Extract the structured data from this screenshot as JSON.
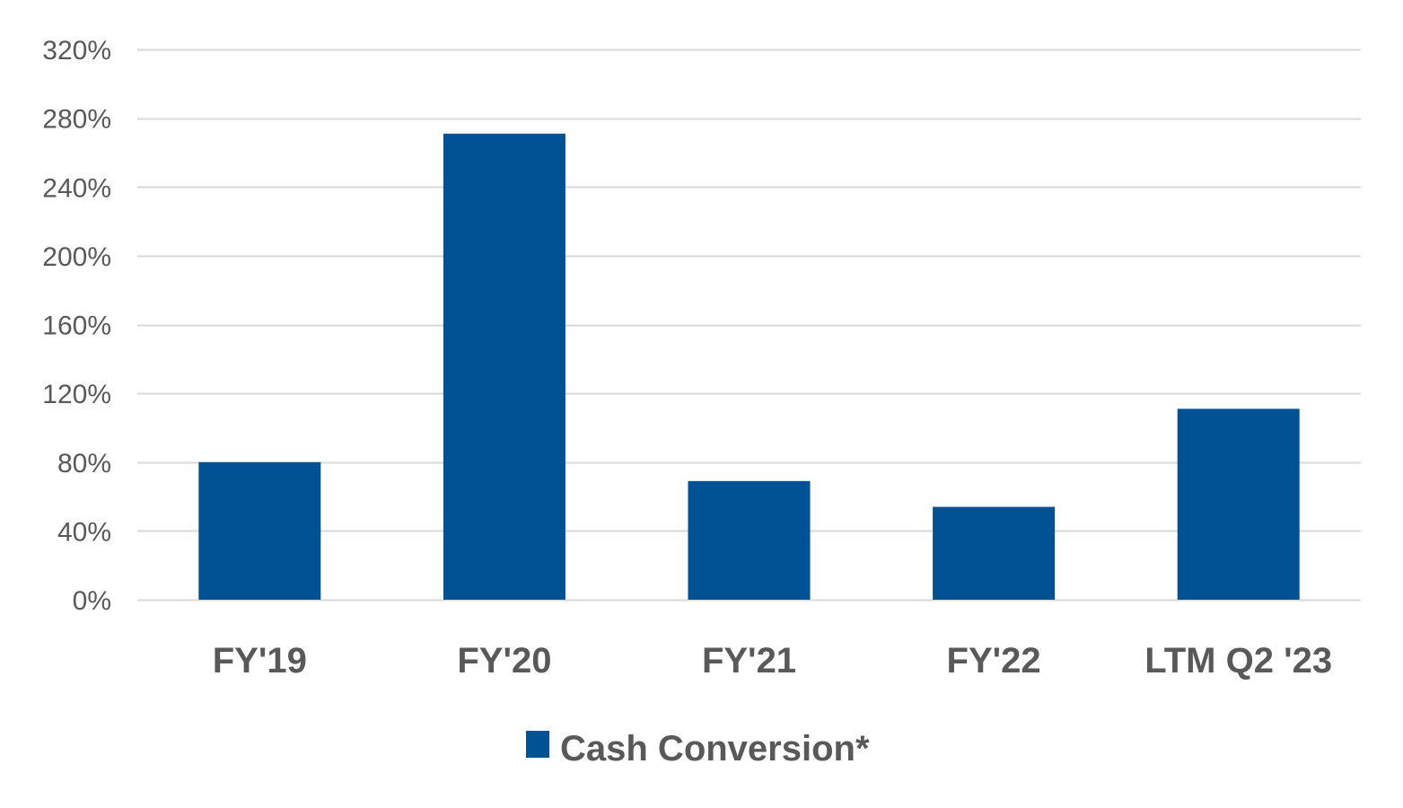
{
  "chart_data": {
    "type": "bar",
    "categories": [
      "FY'19",
      "FY'20",
      "FY'21",
      "FY'22",
      "LTM Q2 '23"
    ],
    "series": [
      {
        "name": "Cash Conversion*",
        "values": [
          80,
          271,
          69,
          54,
          111
        ],
        "color": "#005294"
      }
    ],
    "title": "",
    "xlabel": "",
    "ylabel": "",
    "ylim": [
      0,
      320
    ],
    "yticks": [
      0,
      40,
      80,
      120,
      160,
      200,
      240,
      280,
      320
    ],
    "ytick_format": "percent",
    "grid": true,
    "legend_position": "bottom"
  },
  "colors": {
    "bar": "#005294",
    "grid": "#d9d9d9",
    "text": "#595959"
  }
}
